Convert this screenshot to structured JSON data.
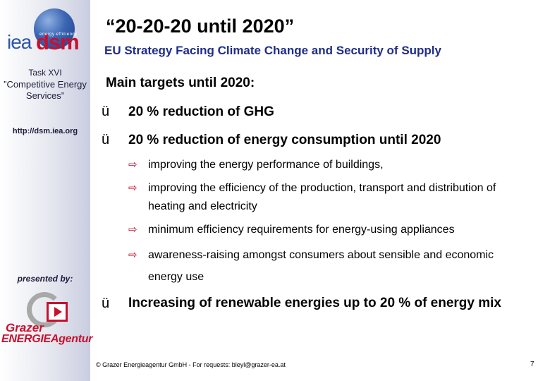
{
  "sidebar": {
    "logo_iea": "iea",
    "logo_dsm": "dsm",
    "logo_tagline": "energy efficiency",
    "task": "Task XVI",
    "task_name": "”Competitive Energy Services”",
    "url": "http://dsm.iea.org",
    "presented_by": "presented by:",
    "org_line1": "Grazer",
    "org_line2": "ENERGIEAgentur"
  },
  "slide": {
    "title": "“20-20-20 until 2020”",
    "subtitle": "EU Strategy Facing Climate Change and Security of Supply",
    "heading": "Main targets until 2020:",
    "targets": [
      "20 % reduction of GHG",
      "20 % reduction of energy consumption until 2020",
      "Increasing of renewable energies up to 20 % of energy mix"
    ],
    "measures": [
      "improving the energy performance of buildings,",
      "improving the efficiency of the production, transport and distribution of heating and electricity",
      "minimum efficiency requirements for energy-using appliances",
      "awareness-raising amongst consumers about sensible and economic energy use"
    ],
    "check_symbol": "ü",
    "arrow_symbol": "⇨"
  },
  "footer": {
    "copyright": "© Grazer Energieagentur GmbH - For requests: bleyl@grazer-ea.at",
    "page_number": "7"
  },
  "colors": {
    "subtitle": "#1e2d8c",
    "accent_red": "#c8102e",
    "iea_blue": "#2b57a6"
  }
}
